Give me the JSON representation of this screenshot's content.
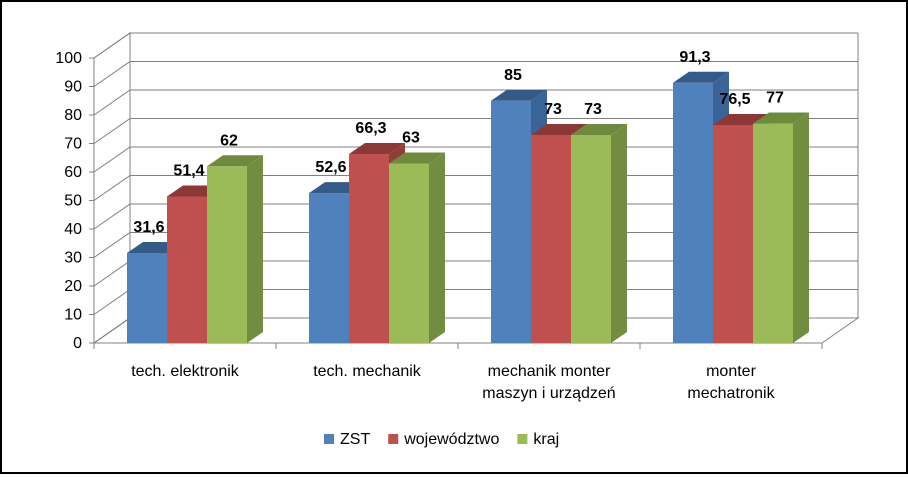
{
  "chart_data": {
    "type": "bar",
    "style": "3d-clustered-column",
    "categories": [
      [
        "tech. elektronik"
      ],
      [
        "tech. mechanik"
      ],
      [
        "mechanik monter",
        "maszyn i urządzeń"
      ],
      [
        "monter",
        "mechatronik"
      ]
    ],
    "series": [
      {
        "name": "ZST",
        "values": [
          31.6,
          52.6,
          85,
          91.3
        ],
        "labels": [
          "31,6",
          "52,6",
          "85",
          "91,3"
        ],
        "color": "#4F81BD",
        "side_color": "#3A6496",
        "top_color": "#345A88"
      },
      {
        "name": "województwo",
        "values": [
          51.4,
          66.3,
          73,
          76.5
        ],
        "labels": [
          "51,4",
          "66,3",
          "73",
          "76,5"
        ],
        "color": "#C0504D",
        "side_color": "#943C3A",
        "top_color": "#8C3836"
      },
      {
        "name": "kraj",
        "values": [
          62,
          63,
          73,
          77
        ],
        "labels": [
          "62",
          "63",
          "73",
          "77"
        ],
        "color": "#9BBB59",
        "side_color": "#728C40",
        "top_color": "#6E8A3C"
      }
    ],
    "yticks": [
      "0",
      "10",
      "20",
      "30",
      "40",
      "50",
      "60",
      "70",
      "80",
      "90",
      "100"
    ],
    "ylim": [
      0,
      100
    ],
    "grid": true,
    "legend_position": "bottom"
  }
}
